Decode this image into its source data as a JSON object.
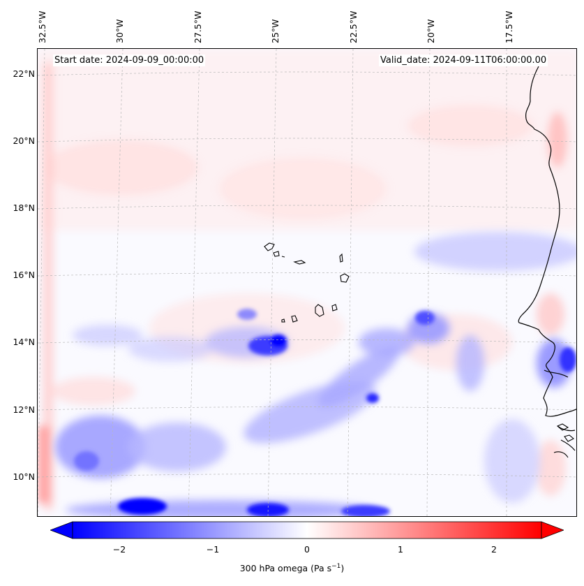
{
  "header": {
    "start_date": "Start date: 2024-09-09_00:00:00",
    "valid_date": "Valid_date: 2024-09-11T06:00:00.00"
  },
  "map": {
    "longitude_labels": [
      "32.5°W",
      "30°W",
      "27.5°W",
      "25°W",
      "22.5°W",
      "20°W",
      "17.5°W"
    ],
    "latitude_labels": [
      "22°N",
      "20°N",
      "18°N",
      "16°N",
      "14°N",
      "12°N",
      "10°N"
    ],
    "variable": "300 hPa omega",
    "gridlines": true,
    "coastline_color": "#000000"
  },
  "colorbar": {
    "label_text": "300 hPa omega (Pa s",
    "label_exponent": "−1",
    "label_close": ")",
    "ticks": [
      "−2",
      "−1",
      "0",
      "1",
      "2"
    ],
    "range": [
      -2.5,
      2.5
    ],
    "colormap": "bwr",
    "extend": "both",
    "negative_color": "#0000ff",
    "zero_color": "#ffffff",
    "positive_color": "#ff0000"
  }
}
